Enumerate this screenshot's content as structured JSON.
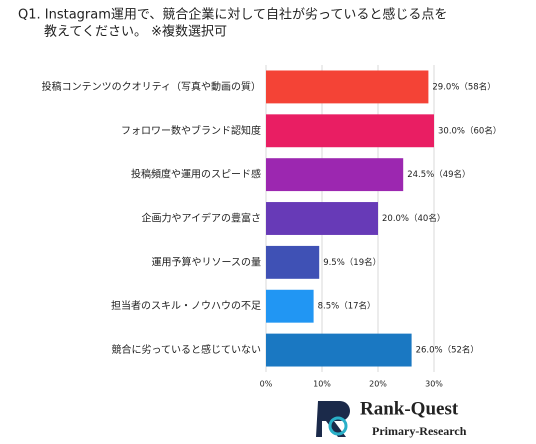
{
  "chart_data": {
    "type": "bar",
    "orientation": "horizontal",
    "title": [
      "Q1. Instagram運用で、競合企業に対して自社が劣っていると感じる点を",
      "教えてください。 ※複数選択可"
    ],
    "categories": [
      "投稿コンテンツのクオリティ（写真や動画の質）",
      "フォロワー数やブランド認知度",
      "投稿頻度や運用のスピード感",
      "企画力やアイデアの豊富さ",
      "運用予算やリソースの量",
      "担当者のスキル・ノウハウの不足",
      "競合に劣っていると感じていない"
    ],
    "values": [
      29.0,
      30.0,
      24.5,
      20.0,
      9.5,
      8.5,
      26.0
    ],
    "value_labels": [
      "29.0%（58名）",
      "30.0%（60名）",
      "24.5%（49名）",
      "20.0%（40名）",
      "9.5%（19名）",
      "8.5%（17名）",
      "26.0%（52名）"
    ],
    "colors": [
      "#f44336",
      "#e91e63",
      "#9c27b0",
      "#673ab7",
      "#3f51b5",
      "#2196f3",
      "#1a78c2"
    ],
    "xlim": [
      0,
      30
    ],
    "xticks": [
      {
        "value": 0,
        "label": "0%"
      },
      {
        "value": 10,
        "label": "10%"
      },
      {
        "value": 20,
        "label": "20%"
      },
      {
        "value": 30,
        "label": "30%"
      }
    ],
    "grid": true
  },
  "logo": {
    "name": "Rank-Quest",
    "subtitle": "Primary-Research"
  }
}
